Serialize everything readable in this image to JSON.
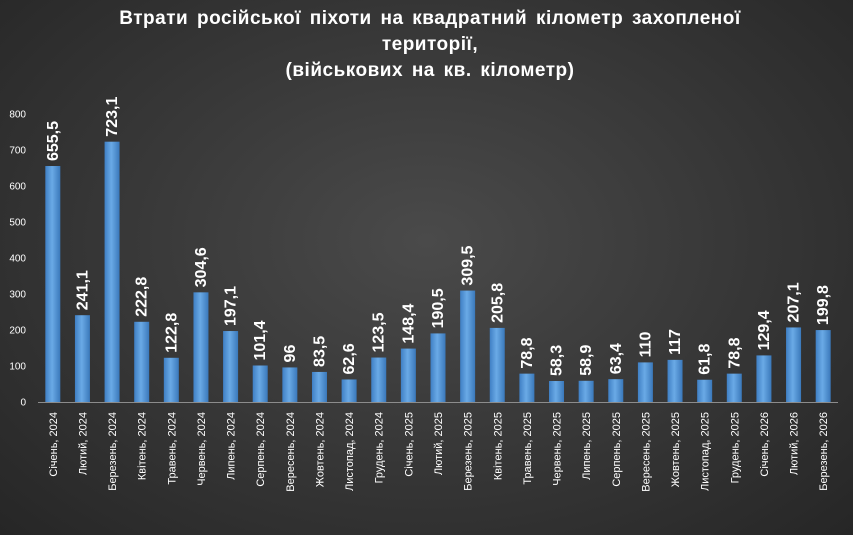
{
  "chart_data": {
    "type": "bar",
    "title_lines": [
      "Втрати російської піхоти на квадратний кілометр захопленої",
      "території,",
      "(військових на кв. кілометр)"
    ],
    "xlabel": "",
    "ylabel": "",
    "ylim": [
      0,
      800
    ],
    "yticks": [
      0,
      100,
      200,
      300,
      400,
      500,
      600,
      700,
      800
    ],
    "grid": false,
    "legend": "none",
    "bar_color": "#5b9bd5",
    "categories": [
      "Січень, 2024",
      "Лютий, 2024",
      "Березень, 2024",
      "Квітень, 2024",
      "Травень, 2024",
      "Червень, 2024",
      "Липень, 2024",
      "Серпень, 2024",
      "Вересень, 2024",
      "Жовтень, 2024",
      "Листопад, 2024",
      "Грудень, 2024",
      "Січень, 2025",
      "Лютий, 2025",
      "Березень, 2025",
      "Квітень, 2025",
      "Травень, 2025",
      "Червень, 2025",
      "Липень, 2025",
      "Серпень, 2025",
      "Вересень, 2025",
      "Жовтень, 2025",
      "Листопад, 2025",
      "Грудень, 2025",
      "Січень, 2026",
      "Лютий, 2026",
      "Березень, 2026"
    ],
    "values": [
      655.5,
      241.1,
      723.1,
      222.8,
      122.8,
      304.6,
      197.1,
      101.4,
      96,
      83.5,
      62.6,
      123.5,
      148.4,
      190.5,
      309.5,
      205.8,
      78.8,
      58.3,
      58.9,
      63.4,
      110,
      117,
      61.8,
      78.8,
      129.4,
      207.1,
      199.8
    ],
    "value_labels": [
      "655,5",
      "241,1",
      "723,1",
      "222,8",
      "122,8",
      "304,6",
      "197,1",
      "101,4",
      "96",
      "83,5",
      "62,6",
      "123,5",
      "148,4",
      "190,5",
      "309,5",
      "205,8",
      "78,8",
      "58,3",
      "58,9",
      "63,4",
      "110",
      "117",
      "61,8",
      "78,8",
      "129,4",
      "207,1",
      "199,8"
    ]
  }
}
